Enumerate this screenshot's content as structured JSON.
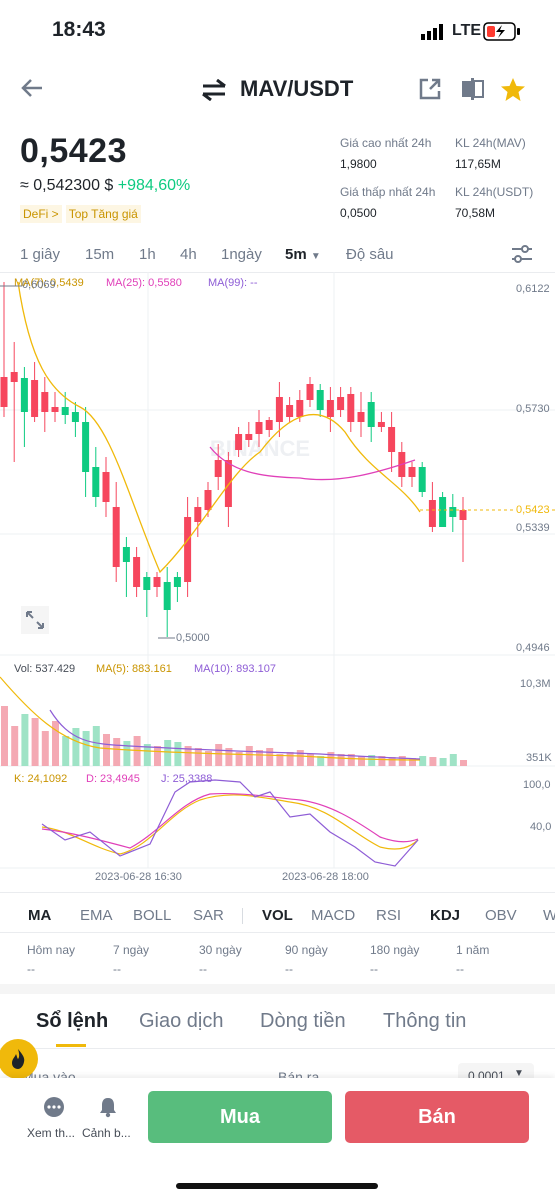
{
  "status_bar": {
    "time": "18:43",
    "network": "LTE"
  },
  "header": {
    "pair": "MAV/USDT"
  },
  "price": {
    "last": "0,5423",
    "approx": "≈ 0,542300 $",
    "change": "+984,60%",
    "tags": [
      "DeFi >",
      "Top Tăng giá"
    ]
  },
  "stats": {
    "high_label": "Giá cao nhất 24h",
    "high_value": "1,9800",
    "vol_mav_label": "KL 24h(MAV)",
    "vol_mav_value": "117,65M",
    "low_label": "Giá thấp nhất 24h",
    "low_value": "0,0500",
    "vol_usdt_label": "KL 24h(USDT)",
    "vol_usdt_value": "70,58M"
  },
  "timeframes": [
    "1 giây",
    "15m",
    "1h",
    "4h",
    "1ngày",
    "5m",
    "Độ sâu"
  ],
  "chart": {
    "ma7": "MA(7): 0,5439",
    "ma25": "MA(25): 0,5580",
    "ma99": "MA(99): --",
    "price_axis": [
      "0,6122",
      "0,5730",
      "0,5339",
      "0,4946"
    ],
    "current_price_tag": "0,5423",
    "high_marker": "0,6069",
    "low_marker": "0,5000",
    "watermark": "BINANCE",
    "vol": "Vol: 537.429",
    "vol_ma5": "MA(5): 883.161",
    "vol_ma10": "MA(10): 893.107",
    "vol_axis": [
      "10,3M",
      "351K"
    ],
    "kdj_k": "K: 24,1092",
    "kdj_d": "D: 23,4945",
    "kdj_j": "J: 25,3388",
    "kdj_axis": [
      "100,0",
      "40,0"
    ],
    "time_axis": [
      "2023-06-28 16:30",
      "2023-06-28 18:00"
    ],
    "colors": {
      "up": "#0ecb81",
      "down": "#f6465d",
      "ma7": "#f0b90b",
      "ma25": "#e040b9",
      "ma99": "#8e5dd6"
    }
  },
  "indicator_tabs": [
    "MA",
    "EMA",
    "BOLL",
    "SAR",
    "VOL",
    "MACD",
    "RSI",
    "KDJ",
    "OBV",
    "W"
  ],
  "periods": [
    {
      "label": "Hôm nay",
      "value": "--"
    },
    {
      "label": "7 ngày",
      "value": "--"
    },
    {
      "label": "30 ngày",
      "value": "--"
    },
    {
      "label": "90 ngày",
      "value": "--"
    },
    {
      "label": "180 ngày",
      "value": "--"
    },
    {
      "label": "1 năm",
      "value": "--"
    }
  ],
  "section_tabs": [
    "Sổ lệnh",
    "Giao dịch",
    "Dòng tiền",
    "Thông tin"
  ],
  "orderbook_peek": {
    "buy": "Mua vào",
    "sell": "Bán ra",
    "step": "0,0001"
  },
  "bottom": {
    "more": "Xem th...",
    "alert": "Cảnh b...",
    "buy": "Mua",
    "sell": "Bán",
    "buy_color": "#58bd7d",
    "sell_color": "#e55a66"
  }
}
